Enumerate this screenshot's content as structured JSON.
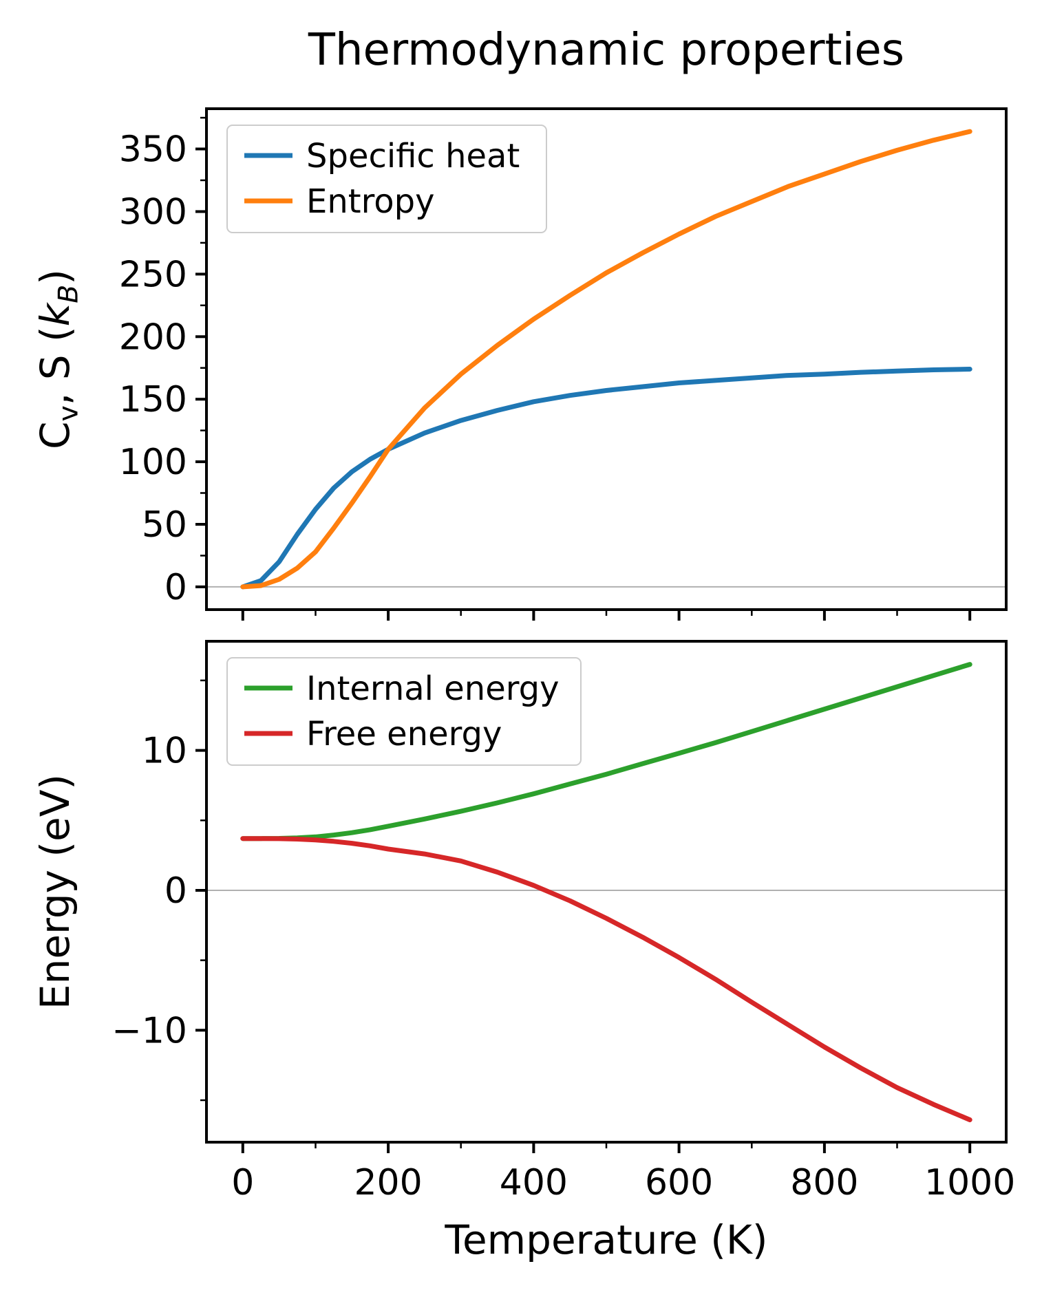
{
  "title": "Thermodynamic properties",
  "xlabel": "Temperature (K)",
  "ylabel_top_parts": {
    "c": "C",
    "v_sub": "v",
    "mid": ", S (",
    "k": "k",
    "b_sub": "B",
    "close": ")"
  },
  "ylabel_bottom": "Energy (eV)",
  "chart_data": [
    {
      "type": "line",
      "panel": "top",
      "ylabel": "Cv, S (kB)",
      "xlabel": "",
      "x": [
        0,
        25,
        50,
        75,
        100,
        125,
        150,
        175,
        200,
        250,
        300,
        350,
        400,
        450,
        500,
        550,
        600,
        650,
        700,
        750,
        800,
        850,
        900,
        950,
        1000
      ],
      "series": [
        {
          "name": "Specific heat",
          "color": "#1f77b4",
          "values": [
            0,
            5,
            20,
            42,
            62,
            79,
            92,
            102,
            110,
            123,
            133,
            141,
            148,
            153,
            157,
            160,
            163,
            165,
            167,
            169,
            170,
            171.5,
            172.5,
            173.5,
            174
          ]
        },
        {
          "name": "Entropy",
          "color": "#ff7f0e",
          "values": [
            0,
            1,
            6,
            15,
            28,
            47,
            67,
            88,
            110,
            143,
            170,
            193,
            214,
            233,
            251,
            267,
            282,
            296,
            308,
            320,
            330,
            340,
            349,
            357,
            364
          ]
        }
      ],
      "xlim": [
        -50,
        1050
      ],
      "ylim": [
        -18.2,
        382.2
      ],
      "xticks": [
        0,
        200,
        400,
        600,
        800,
        1000
      ],
      "xtick_labels": [
        "0",
        "200",
        "400",
        "600",
        "800",
        "1000"
      ],
      "xticks_minor": [
        100,
        300,
        500,
        700,
        900
      ],
      "yticks": [
        0,
        50,
        100,
        150,
        200,
        250,
        300,
        350
      ],
      "ytick_labels": [
        "0",
        "50",
        "100",
        "150",
        "200",
        "250",
        "300",
        "350"
      ],
      "yticks_minor": [
        25,
        75,
        125,
        175,
        225,
        275,
        325,
        375
      ],
      "show_x_labels": false,
      "zero_line": true,
      "grid": false,
      "legend_position": "upper-left",
      "legend": [
        "Specific heat",
        "Entropy"
      ]
    },
    {
      "type": "line",
      "panel": "bottom",
      "ylabel": "Energy (eV)",
      "xlabel": "Temperature (K)",
      "x": [
        0,
        25,
        50,
        75,
        100,
        125,
        150,
        175,
        200,
        250,
        300,
        350,
        400,
        450,
        500,
        550,
        600,
        650,
        700,
        750,
        800,
        850,
        900,
        950,
        1000
      ],
      "series": [
        {
          "name": "Internal energy",
          "color": "#2ca02c",
          "values": [
            3.7,
            3.7,
            3.71,
            3.75,
            3.82,
            3.95,
            4.12,
            4.33,
            4.58,
            5.1,
            5.65,
            6.25,
            6.9,
            7.6,
            8.3,
            9.05,
            9.8,
            10.55,
            11.35,
            12.15,
            12.95,
            13.75,
            14.55,
            15.35,
            16.15
          ]
        },
        {
          "name": "Free energy",
          "color": "#d62728",
          "values": [
            3.7,
            3.7,
            3.69,
            3.66,
            3.6,
            3.5,
            3.36,
            3.18,
            2.95,
            2.6,
            2.1,
            1.3,
            0.35,
            -0.75,
            -2.0,
            -3.35,
            -4.8,
            -6.35,
            -8.0,
            -9.6,
            -11.2,
            -12.7,
            -14.1,
            -15.3,
            -16.4
          ]
        }
      ],
      "xlim": [
        -50,
        1050
      ],
      "ylim": [
        -18.0,
        17.8
      ],
      "xticks": [
        0,
        200,
        400,
        600,
        800,
        1000
      ],
      "xtick_labels": [
        "0",
        "200",
        "400",
        "600",
        "800",
        "1000"
      ],
      "xticks_minor": [
        100,
        300,
        500,
        700,
        900
      ],
      "yticks": [
        -10,
        0,
        10
      ],
      "ytick_labels": [
        "−10",
        "0",
        "10"
      ],
      "yticks_minor": [
        -15,
        -5,
        5,
        15
      ],
      "show_x_labels": true,
      "zero_line": true,
      "grid": false,
      "legend_position": "upper-left",
      "legend": [
        "Internal energy",
        "Free energy"
      ]
    }
  ]
}
